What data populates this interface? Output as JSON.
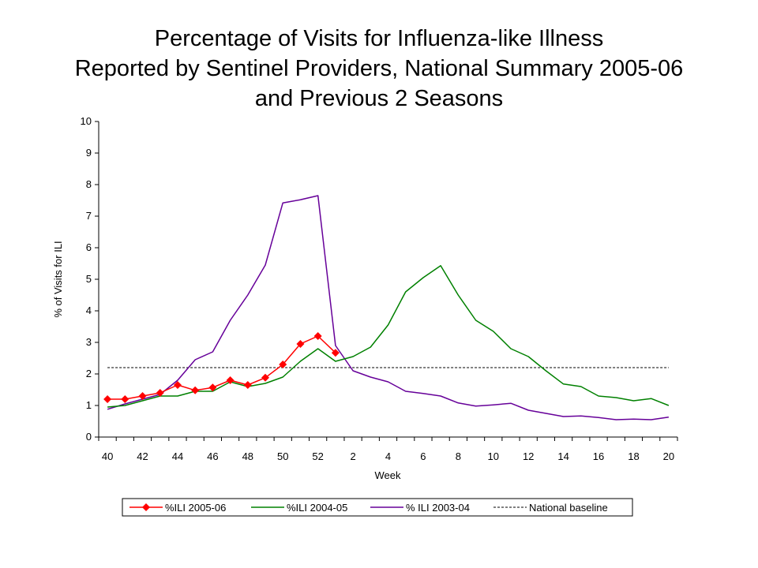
{
  "chart_data": {
    "type": "line",
    "title_lines": [
      "Percentage of Visits for Influenza-like Illness",
      "Reported by Sentinel Providers, National Summary 2005-06",
      "and Previous 2 Seasons"
    ],
    "xlabel": "Week",
    "ylabel": "% of Visits for ILI",
    "ylim": [
      0,
      10
    ],
    "yticks": [
      "0",
      "1",
      "2",
      "3",
      "4",
      "5",
      "6",
      "7",
      "8",
      "9",
      "10"
    ],
    "weeks": [
      "40",
      "41",
      "42",
      "43",
      "44",
      "45",
      "46",
      "47",
      "48",
      "49",
      "50",
      "51",
      "52",
      "1",
      "2",
      "3",
      "4",
      "5",
      "6",
      "7",
      "8",
      "9",
      "10",
      "11",
      "12",
      "13",
      "14",
      "15",
      "16",
      "17",
      "18",
      "19",
      "20"
    ],
    "xticks": [
      "40",
      "42",
      "44",
      "46",
      "48",
      "50",
      "52",
      "2",
      "4",
      "6",
      "8",
      "10",
      "12",
      "14",
      "16",
      "18",
      "20"
    ],
    "series": [
      {
        "name": "%ILI 2005-06",
        "color": "#ff0000",
        "marker": "diamond",
        "values": [
          1.2,
          1.2,
          1.3,
          1.4,
          1.65,
          1.48,
          1.57,
          1.8,
          1.65,
          1.88,
          2.3,
          2.95,
          3.2,
          2.67
        ]
      },
      {
        "name": "%ILI 2004-05",
        "color": "#008000",
        "marker": "none",
        "values": [
          0.95,
          1.0,
          1.15,
          1.3,
          1.3,
          1.45,
          1.45,
          1.75,
          1.6,
          1.7,
          1.9,
          2.4,
          2.8,
          2.4,
          2.55,
          2.85,
          3.55,
          4.6,
          5.05,
          5.43,
          4.5,
          3.7,
          3.35,
          2.8,
          2.55,
          2.1,
          1.68,
          1.6,
          1.3,
          1.25,
          1.15,
          1.22,
          1.0
        ]
      },
      {
        "name": "% ILI 2003-04",
        "color": "#660099",
        "marker": "none",
        "values": [
          0.88,
          1.05,
          1.2,
          1.35,
          1.8,
          2.45,
          2.7,
          3.7,
          4.5,
          5.45,
          7.42,
          7.52,
          7.65,
          2.9,
          2.1,
          1.9,
          1.75,
          1.45,
          1.38,
          1.3,
          1.08,
          0.98,
          1.02,
          1.07,
          0.85,
          0.75,
          0.65,
          0.67,
          0.62,
          0.55,
          0.57,
          0.55,
          0.63
        ]
      }
    ],
    "baseline": {
      "name": "National baseline",
      "value": 2.2,
      "color": "#000000"
    },
    "legend_position": "bottom"
  }
}
